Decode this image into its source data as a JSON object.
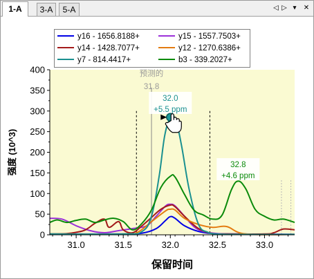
{
  "tabs": [
    {
      "label": "1-A",
      "active": true
    },
    {
      "label": "3-A",
      "active": false
    },
    {
      "label": "5-A",
      "active": false
    }
  ],
  "nav": {
    "prev_icon": "triangle-left-icon",
    "next_icon": "triangle-right-icon",
    "menu_icon": "dropdown-arrow-icon",
    "close_icon": "close-icon",
    "prev": "◁",
    "next": "▷",
    "menu": "▾",
    "close": "✕"
  },
  "chart_data": {
    "type": "line",
    "xlabel": "保留时间",
    "ylabel": "强度 (10^3)",
    "xlim": [
      30.72,
      33.32
    ],
    "ylim": [
      0,
      400
    ],
    "xticks": [
      "31.0",
      "31.5",
      "32.0",
      "32.5",
      "33.0"
    ],
    "xtick_values": [
      31.0,
      31.5,
      32.0,
      32.5,
      33.0
    ],
    "yticks": [
      "0",
      "50",
      "100",
      "150",
      "200",
      "250",
      "300",
      "350",
      "400"
    ],
    "ytick_values": [
      0,
      50,
      100,
      150,
      200,
      250,
      300,
      350,
      400
    ],
    "plot_background": "#fafad2",
    "legend_placement": "top",
    "series": [
      {
        "name": "y16 - 1656.8188+",
        "color": "#0000e6",
        "x": [
          30.72,
          31.5,
          31.7,
          31.85,
          31.95,
          32.0,
          32.05,
          32.15,
          32.3,
          32.45,
          32.6,
          33.32
        ],
        "y": [
          2,
          2,
          4,
          15,
          35,
          44,
          40,
          22,
          8,
          3,
          2,
          1
        ]
      },
      {
        "name": "y15 - 1557.7503+",
        "color": "#9b30d9",
        "x": [
          30.72,
          30.85,
          31.0,
          31.15,
          31.3,
          31.45,
          31.6,
          31.75,
          31.85,
          31.95,
          32.0,
          32.05,
          32.15,
          32.25,
          32.35,
          32.5,
          32.7,
          33.32
        ],
        "y": [
          40,
          38,
          22,
          10,
          5,
          10,
          15,
          22,
          45,
          70,
          74,
          70,
          45,
          20,
          8,
          3,
          2,
          1
        ]
      },
      {
        "name": "y14 - 1428.7077+",
        "color": "#a31a1a",
        "x": [
          30.72,
          30.9,
          31.0,
          31.1,
          31.2,
          31.3,
          31.35,
          31.45,
          31.5,
          31.6,
          31.7,
          31.8,
          31.9,
          32.0,
          32.05,
          32.15,
          32.3,
          32.45,
          32.6,
          33.0,
          33.1,
          33.2,
          33.32
        ],
        "y": [
          2,
          3,
          6,
          12,
          28,
          38,
          18,
          32,
          12,
          5,
          22,
          42,
          62,
          72,
          68,
          45,
          15,
          3,
          2,
          2,
          5,
          14,
          12
        ]
      },
      {
        "name": "y12 - 1270.6386+",
        "color": "#e37b10",
        "x": [
          30.72,
          31.5,
          31.65,
          31.8,
          31.95,
          32.0,
          32.05,
          32.15,
          32.3,
          32.45,
          32.6,
          32.8,
          33.32
        ],
        "y": [
          2,
          2,
          6,
          32,
          58,
          62,
          60,
          40,
          25,
          18,
          20,
          2,
          1
        ]
      },
      {
        "name": "y7 - 814.4417+",
        "color": "#1a9090",
        "x": [
          30.72,
          31.5,
          31.7,
          31.8,
          31.88,
          31.94,
          32.0,
          32.06,
          32.12,
          32.2,
          32.3,
          32.4,
          32.5,
          32.7,
          33.32
        ],
        "y": [
          2,
          2,
          8,
          45,
          140,
          240,
          282,
          275,
          215,
          110,
          25,
          6,
          2,
          1,
          1
        ]
      },
      {
        "name": "b3 - 339.2027+",
        "color": "#0a8a0a",
        "x": [
          30.72,
          30.8,
          30.9,
          31.0,
          31.1,
          31.2,
          31.3,
          31.4,
          31.5,
          31.6,
          31.7,
          31.8,
          31.9,
          32.0,
          32.05,
          32.15,
          32.25,
          32.35,
          32.45,
          32.55,
          32.65,
          32.72,
          32.8,
          32.9,
          33.0,
          33.1,
          33.2,
          33.32
        ],
        "y": [
          30,
          36,
          30,
          35,
          38,
          30,
          36,
          40,
          32,
          12,
          28,
          60,
          115,
          142,
          140,
          98,
          60,
          48,
          38,
          48,
          110,
          130,
          112,
          62,
          45,
          36,
          38,
          30
        ]
      }
    ],
    "annotations": [
      {
        "text_lines": [
          "预测的",
          "31.8"
        ],
        "x": 31.8,
        "color": "#9a9a9a"
      },
      {
        "text_lines": [
          "32.0",
          "+5.5 ppm"
        ],
        "x": 32.0,
        "color": "#1a9090"
      },
      {
        "text_lines": [
          "32.8",
          "+4.6 ppm"
        ],
        "x": 32.72,
        "color": "#0a8a0a"
      }
    ],
    "integration_bounds": [
      31.64,
      32.42
    ]
  }
}
